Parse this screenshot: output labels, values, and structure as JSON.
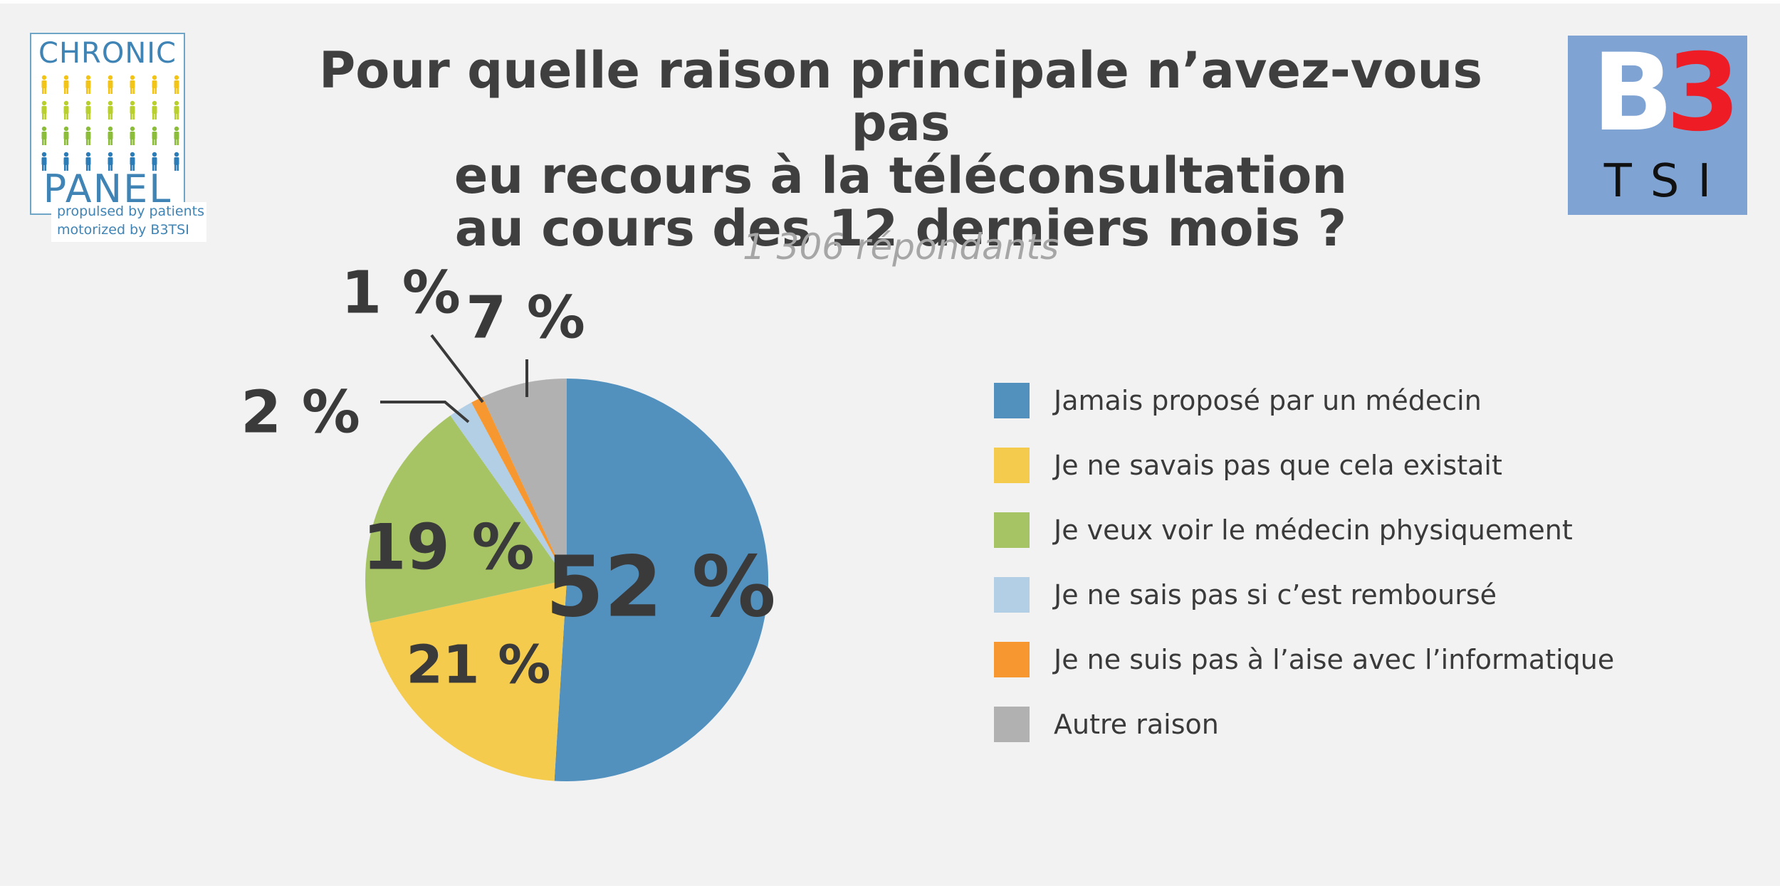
{
  "logo_chronic_panel": {
    "top_word": "CHRONIC",
    "bottom_word": "PANEL",
    "tagline_1": "propulsed by patients",
    "tagline_2": "motorized by B3TSI",
    "people_colors": [
      "#f2c418",
      "#b8cf2d",
      "#8bbd3a",
      "#2c7cb8"
    ]
  },
  "logo_b3tsi": {
    "b": "B",
    "three": "3",
    "tsi": "TSI",
    "bg_color": "#7fa3d3",
    "accent_color": "#ee1c25"
  },
  "title_lines": [
    "Pour quelle raison principale n’avez-vous pas",
    "eu recours à la téléconsultation",
    "au cours des 12 derniers mois ?"
  ],
  "subtitle": "1 306 répondants",
  "chart_data": {
    "type": "pie",
    "title": "Pour quelle raison principale n’avez-vous pas eu recours à la téléconsultation au cours des 12 derniers mois ?",
    "subtitle": "1 306 répondants",
    "unit": "%",
    "legend_position": "right",
    "slices": [
      {
        "label": "Jamais proposé par un médecin",
        "value": 52,
        "display": "52 %",
        "color": "#5290be"
      },
      {
        "label": "Je ne savais pas que cela existait",
        "value": 21,
        "display": "21 %",
        "color": "#f5cb4d"
      },
      {
        "label": "Je veux voir le médecin physiquement",
        "value": 19,
        "display": "19 %",
        "color": "#a7c464"
      },
      {
        "label": "Je ne sais pas si c’est remboursé",
        "value": 2,
        "display": "2 %",
        "color": "#b3cfe5"
      },
      {
        "label": "Je ne suis pas à l’aise avec l’informatique",
        "value": 1,
        "display": "1 %",
        "color": "#f7972f"
      },
      {
        "label": "Autre raison",
        "value": 7,
        "display": "7 %",
        "color": "#b1b1b1"
      }
    ]
  }
}
